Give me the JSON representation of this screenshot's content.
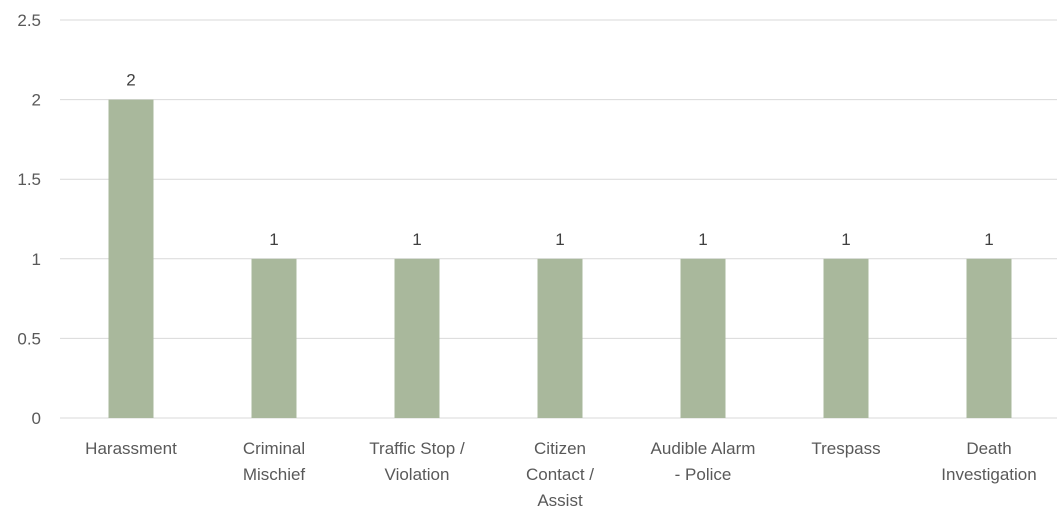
{
  "chart_data": {
    "type": "bar",
    "categories": [
      [
        "Harassment"
      ],
      [
        "Criminal",
        "Mischief"
      ],
      [
        "Traffic Stop /",
        "Violation"
      ],
      [
        "Citizen",
        "Contact /",
        "Assist"
      ],
      [
        "Audible Alarm",
        "- Police"
      ],
      [
        "Trespass"
      ],
      [
        "Death",
        "Investigation"
      ]
    ],
    "values": [
      2,
      1,
      1,
      1,
      1,
      1,
      1
    ],
    "data_labels": [
      "2",
      "1",
      "1",
      "1",
      "1",
      "1",
      "1"
    ],
    "yticks": [
      "0",
      "0.5",
      "1",
      "1.5",
      "2",
      "2.5"
    ],
    "ylim": [
      0,
      2.5
    ],
    "grid": true,
    "legend": "none",
    "bar_color": "#a9b89c"
  }
}
